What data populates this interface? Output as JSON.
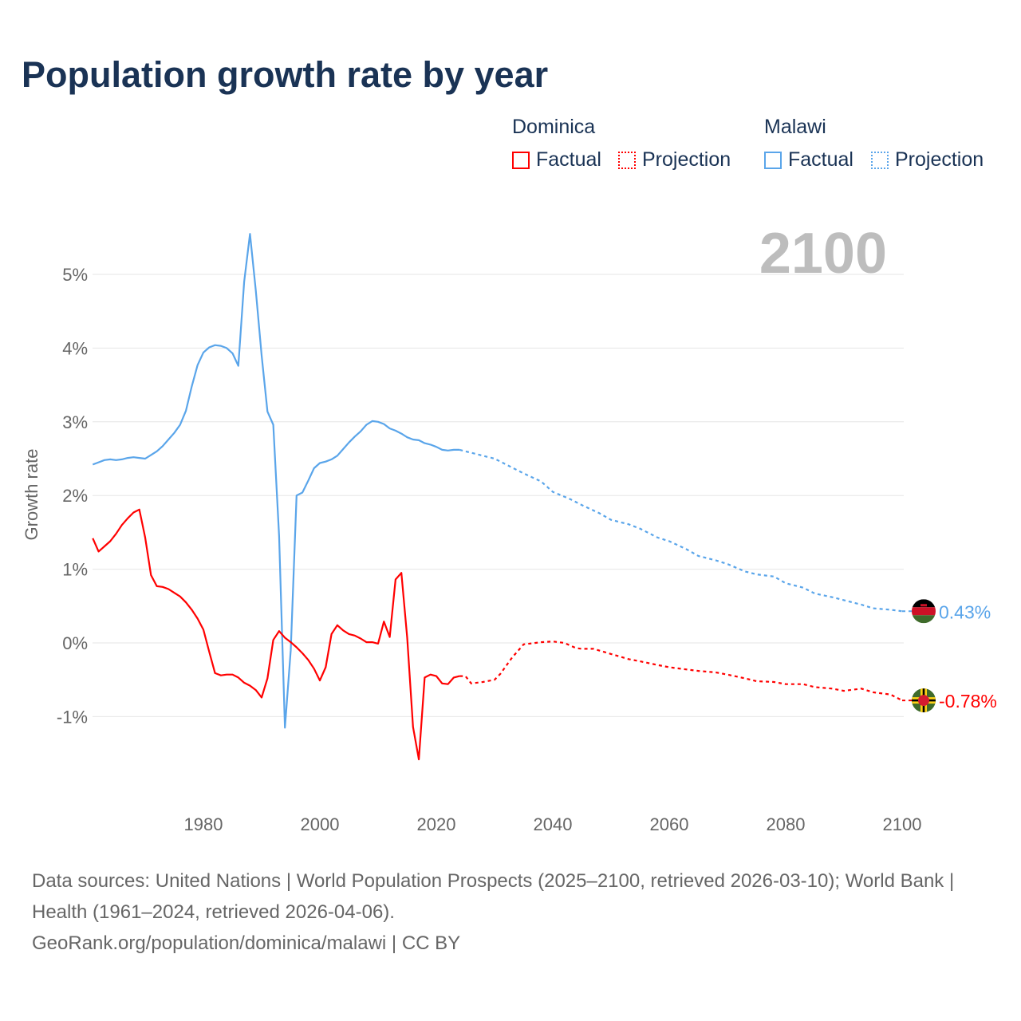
{
  "title": "Population growth rate by year",
  "legend": {
    "groups": [
      {
        "name": "Dominica",
        "factual": "Factual",
        "projection": "Projection",
        "color": "#ff0000"
      },
      {
        "name": "Malawi",
        "factual": "Factual",
        "projection": "Projection",
        "color": "#5aa5ea"
      }
    ]
  },
  "year_overlay": "2100",
  "footer": {
    "sources": "Data sources: United Nations | World Population Prospects (2025–2100, retrieved 2026-03-10); World Bank | Health (1961–2024, retrieved 2026-04-06).",
    "credit": "GeoRank.org/population/dominica/malawi | CC BY"
  },
  "chart_data": {
    "type": "line",
    "title": "Population growth rate by year",
    "xlabel": "",
    "ylabel": "Growth rate",
    "xlim": [
      1961,
      2100
    ],
    "ylim": [
      -2,
      5.6
    ],
    "x_ticks": [
      1980,
      2000,
      2020,
      2040,
      2060,
      2080,
      2100
    ],
    "x_tick_labels": [
      "1980",
      "2000",
      "2020",
      "2040",
      "2060",
      "2080",
      "2100"
    ],
    "y_ticks": [
      -1,
      0,
      1,
      2,
      3,
      4,
      5
    ],
    "y_tick_labels": [
      "-1%",
      "0%",
      "1%",
      "2%",
      "3%",
      "4%",
      "5%"
    ],
    "grid": true,
    "legend_position": "top-right",
    "series": [
      {
        "name": "Malawi",
        "color": "#5aa5ea",
        "end_label": "0.43%",
        "flag": "malawi-flag",
        "factual": {
          "x": [
            1961,
            1962,
            1963,
            1964,
            1965,
            1966,
            1967,
            1968,
            1969,
            1970,
            1971,
            1972,
            1973,
            1974,
            1975,
            1976,
            1977,
            1978,
            1979,
            1980,
            1981,
            1982,
            1983,
            1984,
            1985,
            1986,
            1987,
            1988,
            1989,
            1990,
            1991,
            1992,
            1993,
            1994,
            1995,
            1996,
            1997,
            1998,
            1999,
            2000,
            2001,
            2002,
            2003,
            2004,
            2005,
            2006,
            2007,
            2008,
            2009,
            2010,
            2011,
            2012,
            2013,
            2014,
            2015,
            2016,
            2017,
            2018,
            2019,
            2020,
            2021,
            2022,
            2023,
            2024
          ],
          "y": [
            2.42,
            2.45,
            2.48,
            2.49,
            2.48,
            2.49,
            2.51,
            2.52,
            2.51,
            2.5,
            2.55,
            2.6,
            2.67,
            2.76,
            2.85,
            2.96,
            3.15,
            3.48,
            3.77,
            3.94,
            4.01,
            4.04,
            4.03,
            4.0,
            3.93,
            3.76,
            4.9,
            5.55,
            4.78,
            3.9,
            3.14,
            2.96,
            1.45,
            -1.15,
            -0.1,
            2.0,
            2.04,
            2.2,
            2.37,
            2.44,
            2.46,
            2.49,
            2.54,
            2.63,
            2.72,
            2.8,
            2.87,
            2.96,
            3.01,
            3.0,
            2.97,
            2.91,
            2.88,
            2.84,
            2.79,
            2.76,
            2.75,
            2.71,
            2.69,
            2.66,
            2.62,
            2.61,
            2.62,
            2.62
          ]
        },
        "projection": {
          "x": [
            2024,
            2027,
            2030,
            2033,
            2035,
            2038,
            2040,
            2043,
            2045,
            2048,
            2050,
            2053,
            2055,
            2058,
            2060,
            2063,
            2065,
            2068,
            2070,
            2073,
            2075,
            2078,
            2080,
            2083,
            2085,
            2088,
            2090,
            2093,
            2095,
            2098,
            2100
          ],
          "y": [
            2.62,
            2.56,
            2.5,
            2.38,
            2.3,
            2.19,
            2.05,
            1.95,
            1.87,
            1.76,
            1.67,
            1.61,
            1.55,
            1.43,
            1.38,
            1.27,
            1.18,
            1.12,
            1.07,
            0.97,
            0.93,
            0.9,
            0.81,
            0.75,
            0.67,
            0.62,
            0.58,
            0.52,
            0.47,
            0.45,
            0.43
          ]
        }
      },
      {
        "name": "Dominica",
        "color": "#ff0000",
        "end_label": "-0.78%",
        "flag": "dominica-flag",
        "factual": {
          "x": [
            1961,
            1962,
            1963,
            1964,
            1965,
            1966,
            1967,
            1968,
            1969,
            1970,
            1971,
            1972,
            1973,
            1974,
            1975,
            1976,
            1977,
            1978,
            1979,
            1980,
            1981,
            1982,
            1983,
            1984,
            1985,
            1986,
            1987,
            1988,
            1989,
            1990,
            1991,
            1992,
            1993,
            1994,
            1995,
            1996,
            1997,
            1998,
            1999,
            2000,
            2001,
            2002,
            2003,
            2004,
            2005,
            2006,
            2007,
            2008,
            2009,
            2010,
            2011,
            2012,
            2013,
            2014,
            2015,
            2016,
            2017,
            2018,
            2019,
            2020,
            2021,
            2022,
            2023,
            2024
          ],
          "y": [
            1.42,
            1.24,
            1.31,
            1.38,
            1.48,
            1.6,
            1.69,
            1.77,
            1.81,
            1.43,
            0.92,
            0.77,
            0.76,
            0.73,
            0.68,
            0.63,
            0.55,
            0.45,
            0.33,
            0.18,
            -0.12,
            -0.41,
            -0.44,
            -0.43,
            -0.43,
            -0.47,
            -0.54,
            -0.58,
            -0.64,
            -0.74,
            -0.48,
            0.04,
            0.16,
            0.07,
            0.01,
            -0.06,
            -0.14,
            -0.23,
            -0.35,
            -0.51,
            -0.33,
            0.12,
            0.24,
            0.17,
            0.12,
            0.1,
            0.06,
            0.01,
            0.01,
            -0.01,
            0.29,
            0.08,
            0.86,
            0.95,
            0.07,
            -1.14,
            -1.58,
            -0.47,
            -0.43,
            -0.45,
            -0.55,
            -0.56,
            -0.47,
            -0.45
          ]
        },
        "projection": {
          "x": [
            2024,
            2025,
            2026,
            2028,
            2030,
            2031,
            2033,
            2035,
            2038,
            2040,
            2042,
            2044,
            2045,
            2047,
            2050,
            2053,
            2055,
            2058,
            2060,
            2063,
            2065,
            2068,
            2070,
            2073,
            2075,
            2078,
            2080,
            2083,
            2085,
            2088,
            2090,
            2093,
            2095,
            2098,
            2100
          ],
          "y": [
            -0.45,
            -0.45,
            -0.55,
            -0.53,
            -0.5,
            -0.42,
            -0.2,
            -0.02,
            0.01,
            0.02,
            0.0,
            -0.07,
            -0.08,
            -0.08,
            -0.15,
            -0.22,
            -0.25,
            -0.3,
            -0.33,
            -0.36,
            -0.38,
            -0.4,
            -0.43,
            -0.48,
            -0.52,
            -0.53,
            -0.56,
            -0.56,
            -0.6,
            -0.62,
            -0.65,
            -0.62,
            -0.67,
            -0.7,
            -0.78
          ]
        }
      }
    ]
  }
}
